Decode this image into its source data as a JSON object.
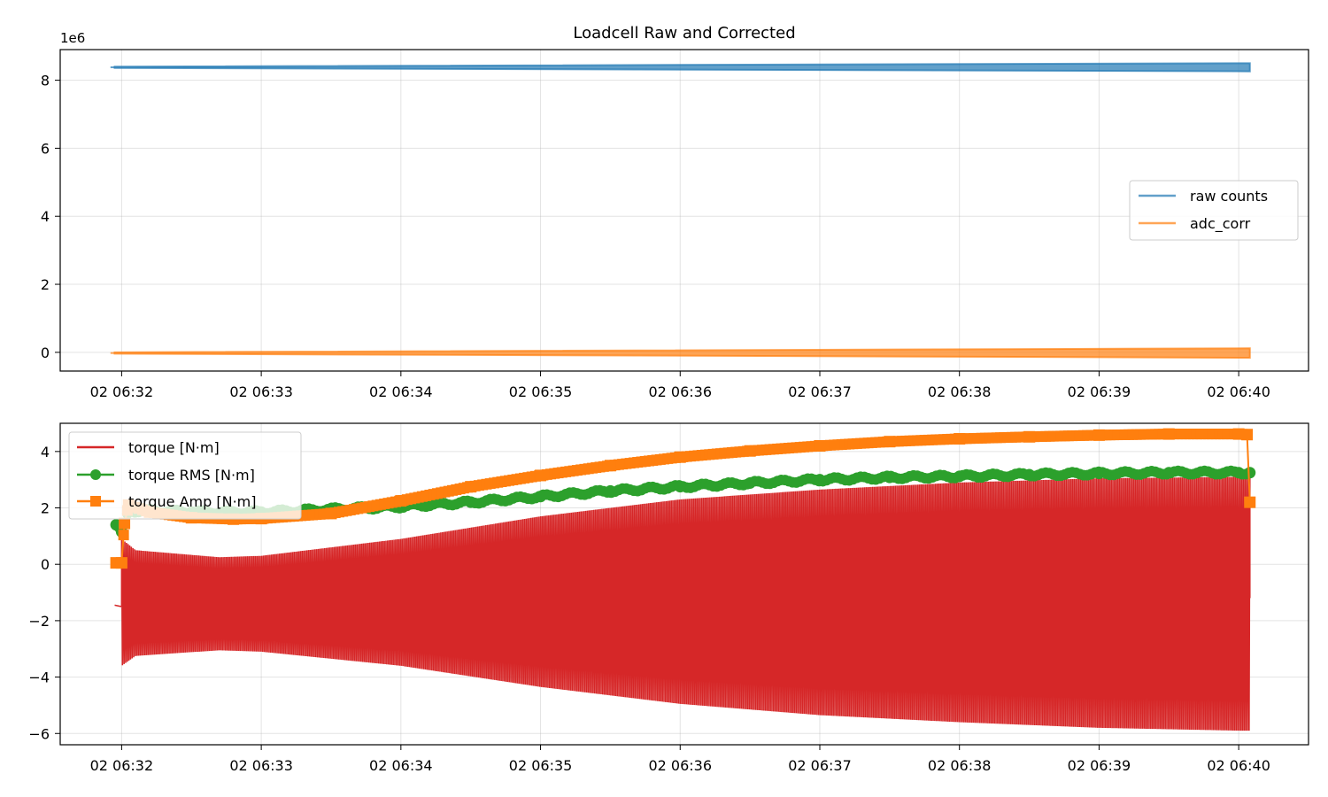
{
  "chart_data": [
    {
      "type": "line",
      "title": "Loadcell Raw and Corrected",
      "xlabel": "",
      "ylabel": "",
      "y_offset_label": "1e6",
      "x_ticks": [
        "02 06:32",
        "02 06:33",
        "02 06:34",
        "02 06:35",
        "02 06:36",
        "02 06:37",
        "02 06:38",
        "02 06:39",
        "02 06:40"
      ],
      "x_range_minutes": [
        31.56,
        40.5
      ],
      "ylim": [
        -0.55,
        8.9
      ],
      "y_ticks": [
        "0",
        "2",
        "4",
        "6",
        "8"
      ],
      "grid": true,
      "legend_position": "center-right",
      "series": [
        {
          "name": "raw counts",
          "color": "#1f77b4",
          "value_1e6": 8.38,
          "band_start": 0.02,
          "band_end": 0.12
        },
        {
          "name": "adc_corr",
          "color": "#ff7f0e",
          "value_1e6": -0.02,
          "band_start": 0.02,
          "band_end": 0.14
        }
      ]
    },
    {
      "type": "line",
      "title": "",
      "xlabel": "",
      "ylabel": "",
      "x_ticks": [
        "02 06:32",
        "02 06:33",
        "02 06:34",
        "02 06:35",
        "02 06:36",
        "02 06:37",
        "02 06:38",
        "02 06:39",
        "02 06:40"
      ],
      "x_range_minutes": [
        31.56,
        40.5
      ],
      "ylim": [
        -6.4,
        5.0
      ],
      "y_ticks": [
        "4",
        "2",
        "0",
        "−2",
        "−4",
        "−6"
      ],
      "grid": true,
      "legend_position": "upper-left",
      "series": [
        {
          "name": "torque [N·m]",
          "color": "#d62728",
          "upper_envelope": {
            "x": [
              32.0,
              32.1,
              32.7,
              33.0,
              34.0,
              35.0,
              36.0,
              37.0,
              38.0,
              39.0,
              40.0,
              40.08
            ],
            "y": [
              0.9,
              0.5,
              0.25,
              0.3,
              0.9,
              1.7,
              2.3,
              2.65,
              2.9,
              3.05,
              3.1,
              3.1
            ]
          },
          "lower_envelope": {
            "x": [
              32.0,
              32.1,
              32.7,
              33.0,
              34.0,
              35.0,
              36.0,
              37.0,
              38.0,
              39.0,
              40.0,
              40.08
            ],
            "y": [
              -3.6,
              -3.25,
              -3.05,
              -3.1,
              -3.6,
              -4.35,
              -4.95,
              -5.35,
              -5.6,
              -5.8,
              -5.9,
              -5.9
            ]
          },
          "lead_in": {
            "x": [
              31.95,
              32.0
            ],
            "y": [
              -1.45,
              -1.5
            ]
          }
        },
        {
          "name": "torque RMS [N·m]",
          "color": "#2ca02c",
          "marker": "circle",
          "x": [
            31.96,
            32.0,
            32.05,
            32.2,
            32.5,
            33.0,
            33.5,
            34.0,
            34.5,
            35.0,
            35.5,
            36.0,
            36.5,
            37.0,
            37.5,
            38.0,
            38.5,
            39.0,
            39.5,
            40.0,
            40.08
          ],
          "y": [
            1.4,
            1.15,
            1.9,
            1.9,
            1.85,
            1.85,
            1.95,
            2.05,
            2.2,
            2.4,
            2.6,
            2.75,
            2.88,
            3.0,
            3.08,
            3.12,
            3.18,
            3.22,
            3.25,
            3.25,
            3.25
          ]
        },
        {
          "name": "torque Amp [N·m]",
          "color": "#ff7f0e",
          "marker": "square",
          "x": [
            31.96,
            32.0,
            32.02,
            32.05,
            32.2,
            32.5,
            32.8,
            33.0,
            33.5,
            34.0,
            34.5,
            35.0,
            35.5,
            36.0,
            36.5,
            37.0,
            37.5,
            38.0,
            38.5,
            39.0,
            39.5,
            40.0,
            40.06,
            40.08
          ],
          "y": [
            0.05,
            0.05,
            1.45,
            2.1,
            1.85,
            1.65,
            1.6,
            1.62,
            1.8,
            2.25,
            2.75,
            3.15,
            3.5,
            3.8,
            4.02,
            4.2,
            4.35,
            4.45,
            4.52,
            4.58,
            4.62,
            4.62,
            4.6,
            2.2
          ]
        }
      ]
    }
  ]
}
